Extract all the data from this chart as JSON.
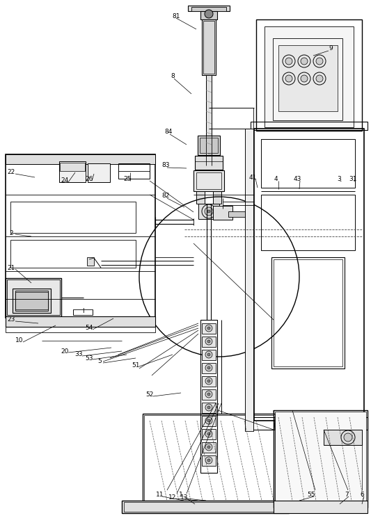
{
  "bg_color": "#ffffff",
  "line_color": "#000000",
  "fig_width": 5.33,
  "fig_height": 7.45,
  "dpi": 100
}
